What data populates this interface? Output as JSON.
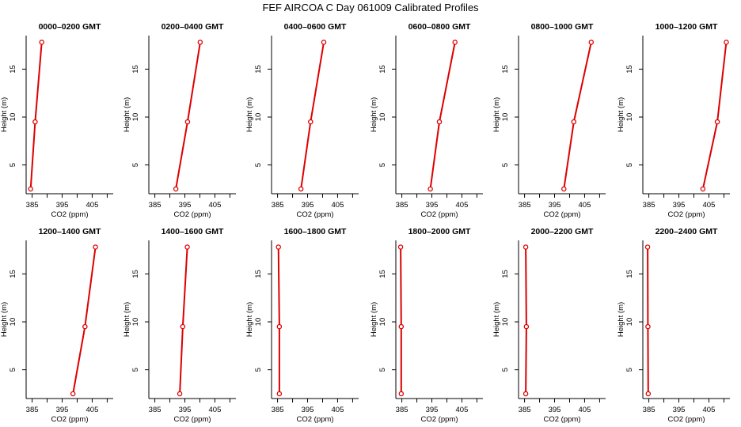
{
  "page": {
    "title": "FEF AIRCOA C  Day 061009  Calibrated Profiles"
  },
  "colors": {
    "series": "#dd0000",
    "axis": "#000000",
    "background": "#ffffff"
  },
  "chart_data": [
    {
      "type": "line",
      "title": "0000–0200 GMT",
      "xlabel": "CO2 (ppm)",
      "ylabel": "Height (m)",
      "xlim": [
        383,
        412
      ],
      "ylim": [
        2,
        18.5
      ],
      "xticks": [
        385,
        395,
        405
      ],
      "yticks": [
        5,
        10,
        15
      ],
      "series": [
        {
          "x": [
            384.5,
            386.0,
            388.2
          ],
          "y": [
            2.5,
            9.5,
            17.8
          ]
        }
      ]
    },
    {
      "type": "line",
      "title": "0200–0400 GMT",
      "xlabel": "CO2 (ppm)",
      "ylabel": "Height (m)",
      "xlim": [
        383,
        412
      ],
      "ylim": [
        2,
        18.5
      ],
      "xticks": [
        385,
        395,
        405
      ],
      "yticks": [
        5,
        10,
        15
      ],
      "series": [
        {
          "x": [
            392.0,
            395.9,
            400.1
          ],
          "y": [
            2.5,
            9.5,
            17.8
          ]
        }
      ]
    },
    {
      "type": "line",
      "title": "0400–0600 GMT",
      "xlabel": "CO2 (ppm)",
      "ylabel": "Height (m)",
      "xlim": [
        383,
        412
      ],
      "ylim": [
        2,
        18.5
      ],
      "xticks": [
        385,
        395,
        405
      ],
      "yticks": [
        5,
        10,
        15
      ],
      "series": [
        {
          "x": [
            392.8,
            396.0,
            400.4
          ],
          "y": [
            2.5,
            9.5,
            17.8
          ]
        }
      ]
    },
    {
      "type": "line",
      "title": "0600–0800 GMT",
      "xlabel": "CO2 (ppm)",
      "ylabel": "Height (m)",
      "xlim": [
        383,
        412
      ],
      "ylim": [
        2,
        18.5
      ],
      "xticks": [
        385,
        395,
        405
      ],
      "yticks": [
        5,
        10,
        15
      ],
      "series": [
        {
          "x": [
            394.5,
            397.5,
            402.7
          ],
          "y": [
            2.5,
            9.5,
            17.8
          ]
        }
      ]
    },
    {
      "type": "line",
      "title": "0800–1000 GMT",
      "xlabel": "CO2 (ppm)",
      "ylabel": "Height (m)",
      "xlim": [
        383,
        412
      ],
      "ylim": [
        2,
        18.5
      ],
      "xticks": [
        385,
        395,
        405
      ],
      "yticks": [
        5,
        10,
        15
      ],
      "series": [
        {
          "x": [
            398.1,
            401.4,
            407.2
          ],
          "y": [
            2.5,
            9.5,
            17.8
          ]
        }
      ]
    },
    {
      "type": "line",
      "title": "1000–1200 GMT",
      "xlabel": "CO2 (ppm)",
      "ylabel": "Height (m)",
      "xlim": [
        383,
        412
      ],
      "ylim": [
        2,
        18.5
      ],
      "xticks": [
        385,
        395,
        405
      ],
      "yticks": [
        5,
        10,
        15
      ],
      "series": [
        {
          "x": [
            403.0,
            407.8,
            410.8
          ],
          "y": [
            2.5,
            9.5,
            17.8
          ]
        }
      ]
    },
    {
      "type": "line",
      "title": "1200–1400 GMT",
      "xlabel": "CO2 (ppm)",
      "ylabel": "Height (m)",
      "xlim": [
        383,
        412
      ],
      "ylim": [
        2,
        18.5
      ],
      "xticks": [
        385,
        395,
        405
      ],
      "yticks": [
        5,
        10,
        15
      ],
      "series": [
        {
          "x": [
            398.6,
            402.6,
            406.1
          ],
          "y": [
            2.5,
            9.5,
            17.8
          ]
        }
      ]
    },
    {
      "type": "line",
      "title": "1400–1600 GMT",
      "xlabel": "CO2 (ppm)",
      "ylabel": "Height (m)",
      "xlim": [
        383,
        412
      ],
      "ylim": [
        2,
        18.5
      ],
      "xticks": [
        385,
        395,
        405
      ],
      "yticks": [
        5,
        10,
        15
      ],
      "series": [
        {
          "x": [
            393.3,
            394.3,
            395.8
          ],
          "y": [
            2.5,
            9.5,
            17.8
          ]
        }
      ]
    },
    {
      "type": "line",
      "title": "1600–1800 GMT",
      "xlabel": "CO2 (ppm)",
      "ylabel": "Height (m)",
      "xlim": [
        383,
        412
      ],
      "ylim": [
        2,
        18.5
      ],
      "xticks": [
        385,
        395,
        405
      ],
      "yticks": [
        5,
        10,
        15
      ],
      "series": [
        {
          "x": [
            385.6,
            385.6,
            385.3
          ],
          "y": [
            2.5,
            9.5,
            17.8
          ]
        }
      ]
    },
    {
      "type": "line",
      "title": "1800–2000 GMT",
      "xlabel": "CO2 (ppm)",
      "ylabel": "Height (m)",
      "xlim": [
        383,
        412
      ],
      "ylim": [
        2,
        18.5
      ],
      "xticks": [
        385,
        395,
        405
      ],
      "yticks": [
        5,
        10,
        15
      ],
      "series": [
        {
          "x": [
            384.8,
            384.8,
            384.6
          ],
          "y": [
            2.5,
            9.5,
            17.8
          ]
        }
      ]
    },
    {
      "type": "line",
      "title": "2000–2200 GMT",
      "xlabel": "CO2 (ppm)",
      "ylabel": "Height (m)",
      "xlim": [
        383,
        412
      ],
      "ylim": [
        2,
        18.5
      ],
      "xticks": [
        385,
        395,
        405
      ],
      "yticks": [
        5,
        10,
        15
      ],
      "series": [
        {
          "x": [
            385.4,
            385.6,
            385.4
          ],
          "y": [
            2.5,
            9.5,
            17.8
          ]
        }
      ]
    },
    {
      "type": "line",
      "title": "2200–2400 GMT",
      "xlabel": "CO2 (ppm)",
      "ylabel": "Height (m)",
      "xlim": [
        383,
        412
      ],
      "ylim": [
        2,
        18.5
      ],
      "xticks": [
        385,
        395,
        405
      ],
      "yticks": [
        5,
        10,
        15
      ],
      "series": [
        {
          "x": [
            384.8,
            384.7,
            384.6
          ],
          "y": [
            2.5,
            9.5,
            17.8
          ]
        }
      ]
    }
  ]
}
